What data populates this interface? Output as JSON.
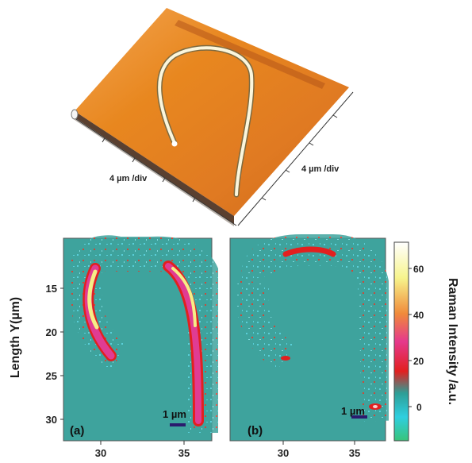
{
  "figure": {
    "top_panel": {
      "axis_label_left": "4 µm /div",
      "axis_label_right": "4 µm /div"
    },
    "shared_y_label": "Length Y(µm)",
    "colorbar": {
      "label": "Raman Intensity /a.u.",
      "ticks": [
        "60",
        "40",
        "20",
        "0"
      ],
      "colors": [
        "#ffffff",
        "#f7f48c",
        "#f08a3a",
        "#e5398c",
        "#e2201f",
        "#2d9e96",
        "#2fcfe0",
        "#38c47a"
      ]
    },
    "panel_a": {
      "tag": "(a)",
      "scalebar_label": "1 µm",
      "y_ticks": [
        "15",
        "20",
        "25",
        "30"
      ],
      "x_ticks": [
        "30",
        "35"
      ]
    },
    "panel_b": {
      "tag": "(b)",
      "scalebar_label": "1 µm",
      "x_ticks": [
        "30",
        "35"
      ]
    },
    "colors": {
      "map_background": "#3ea39d",
      "noise_cyan": "#5fd7e3",
      "noise_red": "#e23a2a",
      "signal_yellow": "#f6ee86",
      "signal_magenta": "#e03c93",
      "surface_orange": "#e07a22",
      "scalebar": "#2a1a6e"
    }
  }
}
